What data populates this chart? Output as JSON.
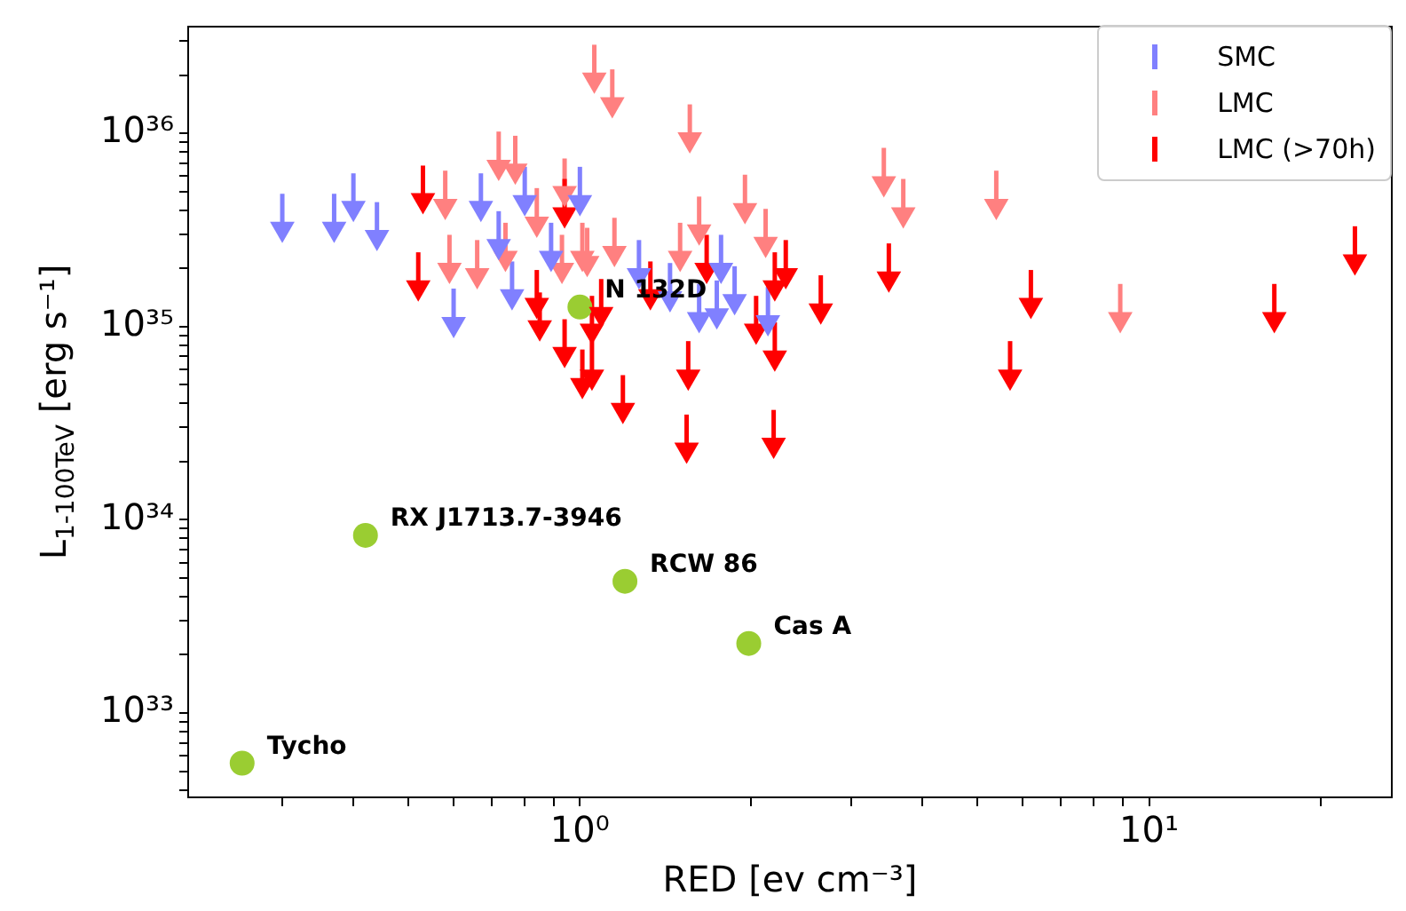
{
  "chart_data": {
    "type": "scatter",
    "xlabel": "RED [ev cm⁻³]",
    "ylabel": "L$_{1-100TeV}$ [erg s⁻¹]",
    "log": "xy",
    "legend": "top right",
    "xlim": [
      0.205,
      26.7
    ],
    "ylim": [
      3.66e+32,
      3.56e+36
    ],
    "xticks": [
      {
        "value": 0.3,
        "label": null
      },
      {
        "value": 0.4,
        "label": null
      },
      {
        "value": 0.5,
        "label": null
      },
      {
        "value": 0.6,
        "label": null
      },
      {
        "value": 0.7,
        "label": null
      },
      {
        "value": 0.8,
        "label": null
      },
      {
        "value": 0.9,
        "label": null
      },
      {
        "value": 1,
        "label": "10⁰"
      },
      {
        "value": 2,
        "label": null
      },
      {
        "value": 3,
        "label": null
      },
      {
        "value": 4,
        "label": null
      },
      {
        "value": 5,
        "label": null
      },
      {
        "value": 6,
        "label": null
      },
      {
        "value": 7,
        "label": null
      },
      {
        "value": 8,
        "label": null
      },
      {
        "value": 9,
        "label": null
      },
      {
        "value": 10,
        "label": "10¹"
      },
      {
        "value": 20,
        "label": null
      }
    ],
    "yticks": [
      {
        "value": 4e+32,
        "label": null
      },
      {
        "value": 5e+32,
        "label": null
      },
      {
        "value": 6e+32,
        "label": null
      },
      {
        "value": 7e+32,
        "label": null
      },
      {
        "value": 8e+32,
        "label": null
      },
      {
        "value": 9e+32,
        "label": null
      },
      {
        "value": 1e+33,
        "label": "10³³"
      },
      {
        "value": 2e+33,
        "label": null
      },
      {
        "value": 3e+33,
        "label": null
      },
      {
        "value": 4e+33,
        "label": null
      },
      {
        "value": 5e+33,
        "label": null
      },
      {
        "value": 6e+33,
        "label": null
      },
      {
        "value": 7e+33,
        "label": null
      },
      {
        "value": 8e+33,
        "label": null
      },
      {
        "value": 9e+33,
        "label": null
      },
      {
        "value": 1e+34,
        "label": "10³⁴"
      },
      {
        "value": 2e+34,
        "label": null
      },
      {
        "value": 3e+34,
        "label": null
      },
      {
        "value": 4e+34,
        "label": null
      },
      {
        "value": 5e+34,
        "label": null
      },
      {
        "value": 6e+34,
        "label": null
      },
      {
        "value": 7e+34,
        "label": null
      },
      {
        "value": 8e+34,
        "label": null
      },
      {
        "value": 9e+34,
        "label": null
      },
      {
        "value": 1e+35,
        "label": "10³⁵"
      },
      {
        "value": 2e+35,
        "label": null
      },
      {
        "value": 3e+35,
        "label": null
      },
      {
        "value": 4e+35,
        "label": null
      },
      {
        "value": 5e+35,
        "label": null
      },
      {
        "value": 6e+35,
        "label": null
      },
      {
        "value": 7e+35,
        "label": null
      },
      {
        "value": 8e+35,
        "label": null
      },
      {
        "value": 9e+35,
        "label": null
      },
      {
        "value": 1e+36,
        "label": "10³⁶"
      },
      {
        "value": 2e+36,
        "label": null
      },
      {
        "value": 3e+36,
        "label": null
      }
    ],
    "series": [
      {
        "name": "SMC",
        "color": "#8080ff",
        "marker": "triangle",
        "x": [
          0.3,
          0.37,
          0.4,
          0.44,
          0.6,
          0.67,
          0.72,
          0.76,
          0.8,
          0.89,
          1.0,
          1.27,
          1.44,
          1.62,
          1.74,
          1.87,
          1.77,
          2.14
        ],
        "values": [
          3.2e+35,
          3.2e+35,
          4.1e+35,
          2.9e+35,
          1.03e+35,
          4.1e+35,
          2.6e+35,
          1.43e+35,
          4.4e+35,
          2.26e+35,
          4.4e+35,
          1.84e+35,
          1.4e+35,
          1.09e+35,
          1.14e+35,
          1.35e+35,
          1.96e+35,
          1.05e+35
        ],
        "errors": [
          [
            3.2e+35,
            4.86e+35
          ],
          [
            3.2e+35,
            4.86e+35
          ],
          [
            4.1e+35,
            6.2e+35
          ],
          [
            2.9e+35,
            4.4e+35
          ],
          [
            1.03e+35,
            1.57e+35
          ],
          [
            4.1e+35,
            6.2e+35
          ],
          [
            2.6e+35,
            3.95e+35
          ],
          [
            1.43e+35,
            2.17e+35
          ],
          [
            4.4e+35,
            6.7e+35
          ],
          [
            2.26e+35,
            3.44e+35
          ],
          [
            4.4e+35,
            6.7e+35
          ],
          [
            1.84e+35,
            2.8e+35
          ],
          [
            1.4e+35,
            2.13e+35
          ],
          [
            1.09e+35,
            1.66e+35
          ],
          [
            1.14e+35,
            1.73e+35
          ],
          [
            1.35e+35,
            2.05e+35
          ],
          [
            1.96e+35,
            2.98e+35
          ],
          [
            1.05e+35,
            1.6e+35
          ]
        ]
      },
      {
        "name": "LMC",
        "color": "#ff8080",
        "marker": "triangle",
        "x": [
          0.72,
          0.77,
          0.58,
          0.59,
          0.66,
          0.84,
          0.74,
          0.94,
          1.01,
          0.93,
          1.06,
          1.14,
          1.56,
          1.95,
          1.62,
          2.12,
          3.42,
          3.7,
          1.5,
          1.15,
          1.03,
          5.39,
          8.9
        ],
        "values": [
          6.7e+35,
          6.4e+35,
          4.2e+35,
          1.96e+35,
          1.84e+35,
          3.4e+35,
          2.26e+35,
          4.9e+35,
          2.26e+35,
          1.96e+35,
          1.89e+36,
          1.41e+36,
          9.3e+35,
          4e+35,
          3.1e+35,
          2.67e+35,
          5.5e+35,
          3.8e+35,
          2.26e+35,
          2.4e+35,
          2.13e+35,
          4.2e+35,
          1.09e+35
        ],
        "errors": [
          [
            6.7e+35,
            1.02e+36
          ],
          [
            6.4e+35,
            9.7e+35
          ],
          [
            4.2e+35,
            6.4e+35
          ],
          [
            1.96e+35,
            2.98e+35
          ],
          [
            1.84e+35,
            2.8e+35
          ],
          [
            3.4e+35,
            5.2e+35
          ],
          [
            2.26e+35,
            3.44e+35
          ],
          [
            4.9e+35,
            7.4e+35
          ],
          [
            2.26e+35,
            3.44e+35
          ],
          [
            1.96e+35,
            2.98e+35
          ],
          [
            1.89e+36,
            2.87e+36
          ],
          [
            1.41e+36,
            2.14e+36
          ],
          [
            9.3e+35,
            1.41e+36
          ],
          [
            4e+35,
            6.1e+35
          ],
          [
            3.1e+35,
            4.7e+35
          ],
          [
            2.67e+35,
            4.06e+35
          ],
          [
            5.5e+35,
            8.4e+35
          ],
          [
            3.8e+35,
            5.8e+35
          ],
          [
            2.26e+35,
            3.44e+35
          ],
          [
            2.4e+35,
            3.65e+35
          ],
          [
            2.13e+35,
            3.24e+35
          ],
          [
            4.2e+35,
            6.4e+35
          ],
          [
            1.09e+35,
            1.66e+35
          ]
        ]
      },
      {
        "name": "LMC (>70h)",
        "color": "#ff0000",
        "marker": "triangle",
        "x": [
          0.52,
          0.53,
          0.84,
          0.85,
          0.94,
          0.94,
          1.05,
          1.09,
          1.01,
          1.05,
          1.19,
          1.55,
          1.54,
          2.19,
          2.04,
          2.2,
          2.3,
          2.2,
          2.65,
          1.67,
          1.33,
          3.49,
          23.0,
          16.6,
          6.2,
          5.7
        ],
        "values": [
          1.59e+35,
          4.5e+35,
          1.29e+35,
          9.9e+34,
          3.8e+35,
          7.2e+34,
          9.5e+34,
          1.16e+35,
          4.97e+34,
          5.5e+34,
          3.7e+34,
          5.5e+34,
          2.3e+34,
          2.44e+34,
          9.5e+34,
          6.9e+34,
          1.84e+35,
          1.59e+35,
          1.21e+35,
          1.96e+35,
          1.43e+35,
          1.77e+35,
          2.17e+35,
          1.09e+35,
          1.29e+35,
          5.5e+34
        ],
        "errors": [
          [
            1.59e+35,
            2.42e+35
          ],
          [
            4.5e+35,
            6.8e+35
          ],
          [
            1.29e+35,
            1.96e+35
          ],
          [
            9.9e+34,
            1.5e+35
          ],
          [
            3.8e+35,
            5.8e+35
          ],
          [
            7.2e+34,
            1.09e+35
          ],
          [
            9.5e+34,
            1.44e+35
          ],
          [
            1.16e+35,
            1.76e+35
          ],
          [
            4.97e+34,
            7.6e+34
          ],
          [
            5.5e+34,
            8.4e+34
          ],
          [
            3.7e+34,
            5.6e+34
          ],
          [
            5.5e+34,
            8.4e+34
          ],
          [
            2.3e+34,
            3.5e+34
          ],
          [
            2.44e+34,
            3.7e+34
          ],
          [
            9.5e+34,
            1.44e+35
          ],
          [
            6.9e+34,
            1.05e+35
          ],
          [
            1.84e+35,
            2.8e+35
          ],
          [
            1.59e+35,
            2.42e+35
          ],
          [
            1.21e+35,
            1.84e+35
          ],
          [
            1.96e+35,
            2.98e+35
          ],
          [
            1.43e+35,
            2.17e+35
          ],
          [
            1.77e+35,
            2.69e+35
          ],
          [
            2.17e+35,
            3.3e+35
          ],
          [
            1.09e+35,
            1.66e+35
          ],
          [
            1.29e+35,
            1.96e+35
          ],
          [
            5.5e+34,
            8.4e+34
          ]
        ]
      },
      {
        "color": "#9acd32",
        "marker": "circle",
        "x": [
          0.255,
          0.42,
          1.2,
          1.98,
          1.0
        ],
        "values": [
          5.5e+32,
          8.3e+33,
          4.8e+33,
          2.29e+33,
          1.26e+35
        ]
      }
    ],
    "annotations": [
      {
        "text": "Tycho",
        "x": 0.255,
        "y": 5.5e+32
      },
      {
        "text": "RX J1713.7-3946",
        "x": 0.42,
        "y": 8.3e+33
      },
      {
        "text": "RCW 86",
        "x": 1.2,
        "y": 4.8e+33
      },
      {
        "text": "Cas A",
        "x": 1.98,
        "y": 2.29e+33
      },
      {
        "text": "N 132D",
        "x": 1.0,
        "y": 1.26e+35
      }
    ]
  }
}
